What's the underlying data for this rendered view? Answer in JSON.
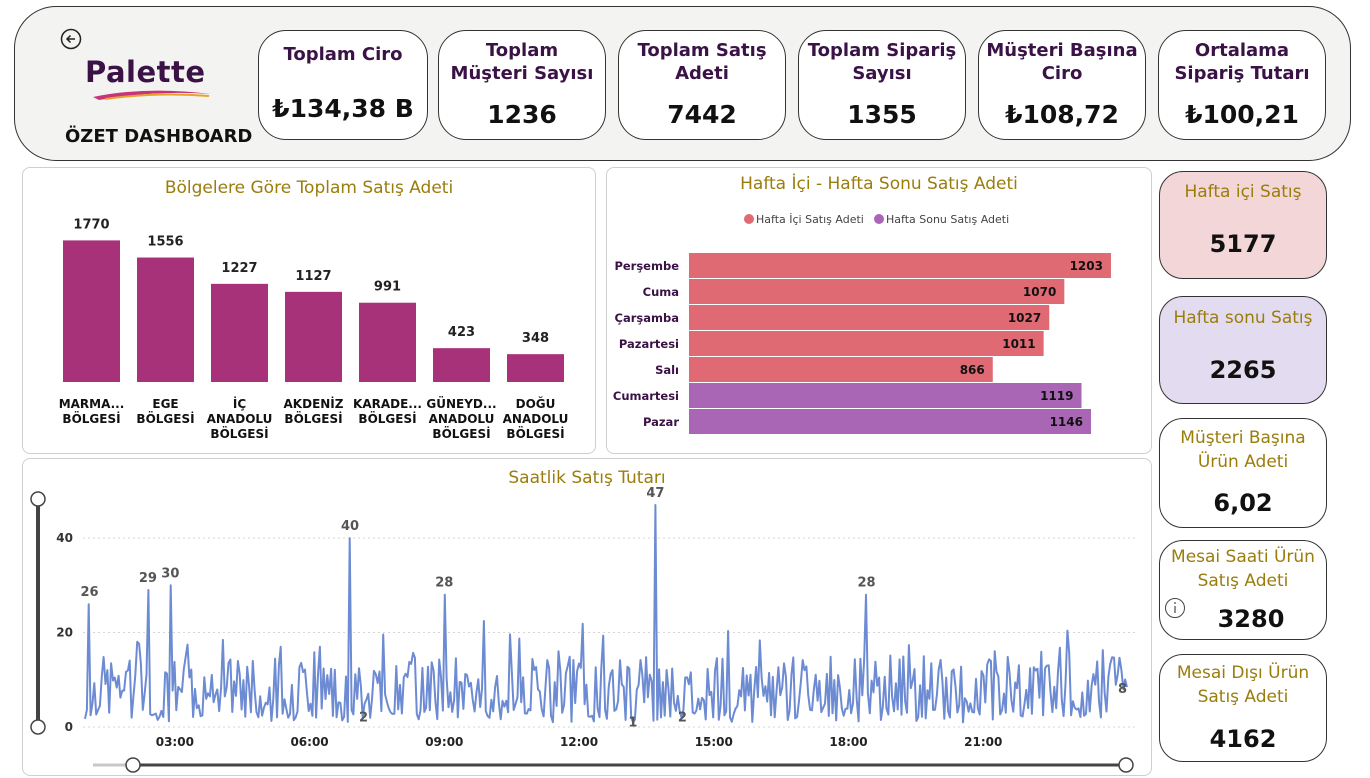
{
  "header": {
    "logo_text": "Palette",
    "title": "ÖZET DASHBOARD",
    "kpis": [
      {
        "label": "Toplam Ciro",
        "value": "₺134,38 B"
      },
      {
        "label": "Toplam Müşteri Sayısı",
        "value": "1236"
      },
      {
        "label": "Toplam Satış Adeti",
        "value": "7442"
      },
      {
        "label": "Toplam Sipariş Sayısı",
        "value": "1355"
      },
      {
        "label": "Müşteri Başına Ciro",
        "value": "₺108,72"
      },
      {
        "label": "Ortalama Sipariş Tutarı",
        "value": "₺100,21"
      }
    ]
  },
  "side_cards": [
    {
      "label": "Hafta içi Satış",
      "value": "5177"
    },
    {
      "label": "Hafta sonu Satış",
      "value": "2265"
    },
    {
      "label": "Müşteri Başına Ürün Adeti",
      "value": "6,02"
    },
    {
      "label": "Mesai Saati Ürün Satış Adeti",
      "value": "3280"
    },
    {
      "label": "Mesai Dışı Ürün Satış Adeti",
      "value": "4162"
    }
  ],
  "colors": {
    "bar": "#a8327a",
    "weekday": "#e06a73",
    "weekend": "#a866b5",
    "line": "#6c8bd3",
    "title_gold": "#9a7d0c",
    "weekday_card": "#f3d6d7",
    "weekend_card": "#e3dcf0"
  },
  "chart_data": [
    {
      "type": "bar",
      "title": "Bölgelere Göre Toplam Satış Adeti",
      "categories": [
        "MARMA... BÖLGESİ",
        "EGE BÖLGESİ",
        "İÇ ANADOLU BÖLGESİ",
        "AKDENİZ BÖLGESİ",
        "KARADE... BÖLGESİ",
        "GÜNEYD... ANADOLU BÖLGESİ",
        "DOĞU ANADOLU BÖLGESİ"
      ],
      "values": [
        1770,
        1556,
        1227,
        1127,
        991,
        423,
        348
      ]
    },
    {
      "type": "bar",
      "orientation": "horizontal",
      "title": "Hafta İçi - Hafta Sonu Satış Adeti",
      "categories": [
        "Perşembe",
        "Cuma",
        "Çarşamba",
        "Pazartesi",
        "Salı",
        "Cumartesi",
        "Pazar"
      ],
      "series": [
        {
          "name": "Hafta İçi Satış Adeti",
          "values": [
            1203,
            1070,
            1027,
            1011,
            866,
            null,
            null
          ]
        },
        {
          "name": "Hafta Sonu Satış Adeti",
          "values": [
            null,
            null,
            null,
            null,
            null,
            1119,
            1146
          ]
        }
      ]
    },
    {
      "type": "line",
      "title": "Saatlik Satış Tutarı",
      "x_ticks": [
        "03:00",
        "06:00",
        "09:00",
        "12:00",
        "15:00",
        "18:00",
        "21:00"
      ],
      "y_ticks": [
        0,
        20,
        40
      ],
      "ylim": [
        0,
        47
      ],
      "xlim_hours": [
        1.0,
        24.2
      ],
      "labeled_points": [
        {
          "hour": 1.1,
          "value": 26
        },
        {
          "hour": 2.4,
          "value": 29
        },
        {
          "hour": 2.9,
          "value": 30
        },
        {
          "hour": 6.9,
          "value": 40
        },
        {
          "hour": 7.2,
          "value": 2
        },
        {
          "hour": 9.0,
          "value": 28
        },
        {
          "hour": 13.2,
          "value": 1
        },
        {
          "hour": 13.7,
          "value": 47
        },
        {
          "hour": 14.3,
          "value": 2
        },
        {
          "hour": 18.4,
          "value": 28
        },
        {
          "hour": 24.1,
          "value": 8
        }
      ],
      "series_note": "dense hourly series, values mostly between 1 and 25"
    }
  ]
}
